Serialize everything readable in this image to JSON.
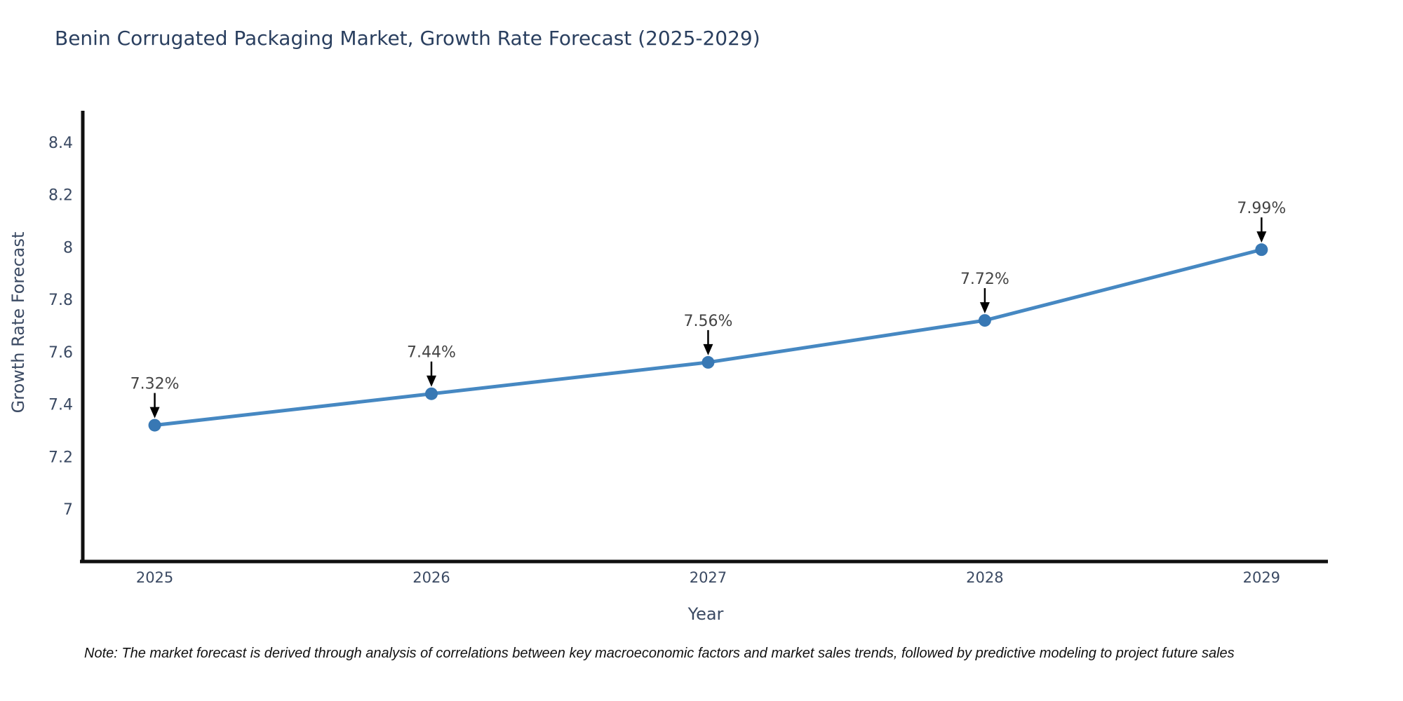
{
  "note": "Note: The market forecast is derived through analysis of correlations between key macroeconomic factors and market sales trends, followed by predictive modeling to project future sales",
  "chart_data": {
    "type": "line",
    "title": "Benin Corrugated Packaging Market, Growth Rate Forecast (2025-2029)",
    "xlabel": "Year",
    "ylabel": "Growth Rate Forecast",
    "x": [
      2025,
      2026,
      2027,
      2028,
      2029
    ],
    "x_tick_labels": [
      "2025",
      "2026",
      "2027",
      "2028",
      "2029"
    ],
    "y": [
      7.32,
      7.44,
      7.56,
      7.72,
      7.99
    ],
    "point_labels": [
      "7.32%",
      "7.44%",
      "7.56%",
      "7.72%",
      "7.99%"
    ],
    "y_ticks": [
      8.4,
      8.2,
      8.0,
      7.8,
      7.6,
      7.4,
      7.2,
      7.0
    ],
    "y_tick_labels": [
      "8.4",
      "8.2",
      "8",
      "7.8",
      "7.6",
      "7.4",
      "7.2",
      "7"
    ],
    "xlim": [
      2024.74,
      2029.24
    ],
    "ylim": [
      6.8,
      8.52
    ],
    "grid": false,
    "legend": null,
    "colors": {
      "line": "#4688c2",
      "marker": "#3878b4",
      "spine": "#101010",
      "title": "#2a3f5f",
      "tick": "#3b4a63",
      "annotation": "#444444",
      "arrow": "#000000"
    }
  }
}
